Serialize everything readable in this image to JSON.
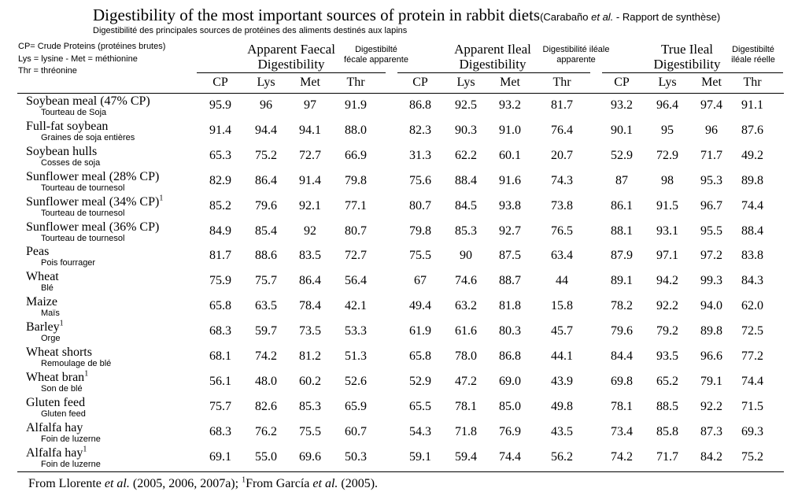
{
  "title": {
    "main": "Digestibility of the most important sources of protein in rabbit diets",
    "credit_open": "(Carabaño ",
    "credit_etal": "et al.",
    "credit_close": " - Rapport de synthèse)"
  },
  "subtitle": "Digestibilité des principales sources de protéines des aliments destinés aux lapins",
  "legend": [
    "CP= Crude Proteins (protéines brutes)",
    "Lys = lysine - Met = méthionine",
    "Thr = thréonine"
  ],
  "groups": [
    {
      "title_line1": "Apparent Faecal",
      "title_line2": "Digestibility",
      "fr_line1": "Digestibilté",
      "fr_line2": "fécale apparente"
    },
    {
      "title_line1": "Apparent Ileal",
      "title_line2": "Digestibility",
      "fr_line1": "Digestibilité iléale",
      "fr_line2": "apparente"
    },
    {
      "title_line1": "True Ileal",
      "title_line2": "Digestibility",
      "fr_line1": "Digestibilté",
      "fr_line2": "iléale réelle"
    }
  ],
  "columns": [
    "CP",
    "Lys",
    "Met",
    "Thr",
    "CP",
    "Lys",
    "Met",
    "Thr",
    "CP",
    "Lys",
    "Met",
    "Thr"
  ],
  "rows": [
    {
      "en": "Soybean meal (47% CP)",
      "sup": "",
      "fr": "Tourteau de Soja",
      "values": [
        "95.9",
        "96",
        "97",
        "91.9",
        "86.8",
        "92.5",
        "93.2",
        "81.7",
        "93.2",
        "96.4",
        "97.4",
        "91.1"
      ]
    },
    {
      "en": "Full-fat soybean",
      "sup": "",
      "fr": "Graines de soja entières",
      "values": [
        "91.4",
        "94.4",
        "94.1",
        "88.0",
        "82.3",
        "90.3",
        "91.0",
        "76.4",
        "90.1",
        "95",
        "96",
        "87.6"
      ]
    },
    {
      "en": "Soybean hulls",
      "sup": "",
      "fr": "Cosses de soja",
      "values": [
        "65.3",
        "75.2",
        "72.7",
        "66.9",
        "31.3",
        "62.2",
        "60.1",
        "20.7",
        "52.9",
        "72.9",
        "71.7",
        "49.2"
      ]
    },
    {
      "en": "Sunflower meal (28% CP)",
      "sup": "",
      "fr": "Tourteau de tournesol",
      "values": [
        "82.9",
        "86.4",
        "91.4",
        "79.8",
        "75.6",
        "88.4",
        "91.6",
        "74.3",
        "87",
        "98",
        "95.3",
        "89.8"
      ]
    },
    {
      "en": "Sunflower meal (34% CP)",
      "sup": "1",
      "fr": "Tourteau de tournesol",
      "values": [
        "85.2",
        "79.6",
        "92.1",
        "77.1",
        "80.7",
        "84.5",
        "93.8",
        "73.8",
        "86.1",
        "91.5",
        "96.7",
        "74.4"
      ]
    },
    {
      "en": "Sunflower meal (36% CP)",
      "sup": "",
      "fr": "Tourteau de tournesol",
      "values": [
        "84.9",
        "85.4",
        "92",
        "80.7",
        "79.8",
        "85.3",
        "92.7",
        "76.5",
        "88.1",
        "93.1",
        "95.5",
        "88.4"
      ]
    },
    {
      "en": "Peas",
      "sup": "",
      "fr": "Pois fourrager",
      "values": [
        "81.7",
        "88.6",
        "83.5",
        "72.7",
        "75.5",
        "90",
        "87.5",
        "63.4",
        "87.9",
        "97.1",
        "97.2",
        "83.8"
      ]
    },
    {
      "en": "Wheat",
      "sup": "",
      "fr": "Blé",
      "values": [
        "75.9",
        "75.7",
        "86.4",
        "56.4",
        "67",
        "74.6",
        "88.7",
        "44",
        "89.1",
        "94.2",
        "99.3",
        "84.3"
      ]
    },
    {
      "en": "Maize",
      "sup": "",
      "fr": "Maïs",
      "values": [
        "65.8",
        "63.5",
        "78.4",
        "42.1",
        "49.4",
        "63.2",
        "81.8",
        "15.8",
        "78.2",
        "92.2",
        "94.0",
        "62.0"
      ]
    },
    {
      "en": "Barley",
      "sup": "1",
      "fr": "Orge",
      "values": [
        "68.3",
        "59.7",
        "73.5",
        "53.3",
        "61.9",
        "61.6",
        "80.3",
        "45.7",
        "79.6",
        "79.2",
        "89.8",
        "72.5"
      ]
    },
    {
      "en": "Wheat shorts",
      "sup": "",
      "fr": "Remoulage de blé",
      "values": [
        "68.1",
        "74.2",
        "81.2",
        "51.3",
        "65.8",
        "78.0",
        "86.8",
        "44.1",
        "84.4",
        "93.5",
        "96.6",
        "77.2"
      ]
    },
    {
      "en": "Wheat bran",
      "sup": "1",
      "fr": "Son de blé",
      "values": [
        "56.1",
        "48.0",
        "60.2",
        "52.6",
        "52.9",
        "47.2",
        "69.0",
        "43.9",
        "69.8",
        "65.2",
        "79.1",
        "74.4"
      ]
    },
    {
      "en": "Gluten feed",
      "sup": "",
      "fr": "Gluten feed",
      "values": [
        "75.7",
        "82.6",
        "85.3",
        "65.9",
        "65.5",
        "78.1",
        "85.0",
        "49.8",
        "78.1",
        "88.5",
        "92.2",
        "71.5"
      ]
    },
    {
      "en": "Alfalfa hay",
      "sup": "",
      "fr": "Foin de luzerne",
      "values": [
        "68.3",
        "76.2",
        "75.5",
        "60.7",
        "54.3",
        "71.8",
        "76.9",
        "43.5",
        "73.4",
        "85.8",
        "87.3",
        "69.3"
      ]
    },
    {
      "en": "Alfalfa hay",
      "sup": "1",
      "fr": "Foin de luzerne",
      "values": [
        "69.1",
        "55.0",
        "69.6",
        "50.3",
        "59.1",
        "59.4",
        "74.4",
        "56.2",
        "74.2",
        "71.7",
        "84.2",
        "75.2"
      ]
    }
  ],
  "footnote": {
    "part1": "From Llorente ",
    "etal1": "et al.",
    "part2": " (2005, 2006, 2007a); ",
    "sup": "1",
    "part3": "From García ",
    "etal2": "et al.",
    "part4": " (2005)."
  }
}
